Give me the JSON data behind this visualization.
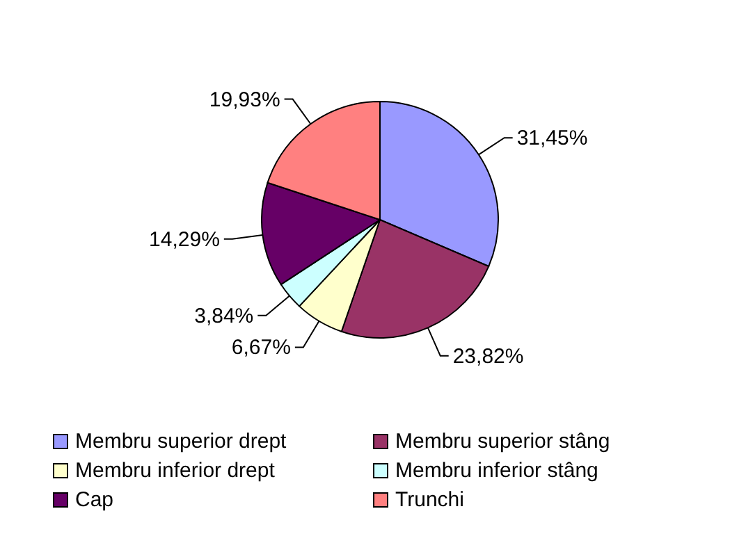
{
  "chart_data": {
    "type": "pie",
    "categories": [
      "Membru superior drept",
      "Membru superior stâng",
      "Membru inferior drept",
      "Membru inferior stâng",
      "Cap",
      "Trunchi"
    ],
    "values": [
      31.45,
      23.82,
      6.67,
      3.84,
      14.29,
      19.93
    ],
    "colors": [
      "#9999ff",
      "#993366",
      "#ffffcc",
      "#ccffff",
      "#660066",
      "#ff8080"
    ],
    "value_labels": [
      "31,45%",
      "23,82%",
      "6,67%",
      "3,84%",
      "14,29%",
      "19,93%"
    ],
    "legend": "bottom"
  }
}
